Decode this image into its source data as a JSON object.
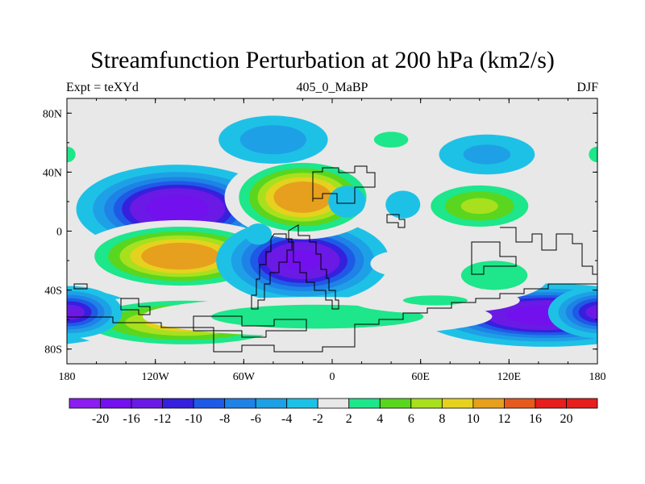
{
  "title": "Streamfunction Perturbation at 200 hPa (km2/s)",
  "left_string": "Expt = teXYd",
  "center_string": "405_0_MaBP",
  "right_string": "DJF",
  "colors": {
    "background_field": "#e8e8e8",
    "levels": [
      -20,
      -16,
      -12,
      -10,
      -8,
      -6,
      -4,
      -2,
      2,
      4,
      6,
      8,
      10,
      12,
      16,
      20
    ],
    "palette": [
      "#8a1ef0",
      "#7310ee",
      "#6a1ae4",
      "#3520de",
      "#1e5ae6",
      "#1e82e6",
      "#1ea0e6",
      "#1ec1e6",
      "#e8e8e8",
      "#1ee68a",
      "#5ad61e",
      "#a8e01e",
      "#e6d21e",
      "#e6a01e",
      "#e65a1e",
      "#e61e1e"
    ]
  },
  "axes": {
    "x_ticks": [
      "180",
      "120W",
      "60W",
      "0",
      "60E",
      "120E",
      "180"
    ],
    "y_ticks": [
      "80N",
      "40N",
      "0",
      "40S",
      "80S"
    ]
  },
  "colorbar_labels": [
    "-20",
    "-16",
    "-12",
    "-10",
    "-8",
    "-6",
    "-4",
    "-2",
    "2",
    "4",
    "6",
    "8",
    "10",
    "12",
    "16",
    "20"
  ],
  "field_blobs": [
    {
      "lon": -105,
      "lat": 15,
      "rx": 32,
      "ry": 14,
      "amp": -20
    },
    {
      "lon": -103,
      "lat": -17,
      "rx": 35,
      "ry": 12,
      "amp": 16
    },
    {
      "lon": -20,
      "lat": -20,
      "rx": 28,
      "ry": 14,
      "amp": -18
    },
    {
      "lon": -20,
      "lat": 23,
      "rx": 26,
      "ry": 14,
      "amp": 16
    },
    {
      "lon": 100,
      "lat": 17,
      "rx": 26,
      "ry": 11,
      "amp": 9
    },
    {
      "lon": 145,
      "lat": -57,
      "rx": 40,
      "ry": 10,
      "amp": -20
    },
    {
      "lon": -100,
      "lat": -62,
      "rx": 45,
      "ry": 10,
      "amp": 12
    },
    {
      "lon": -10,
      "lat": -58,
      "rx": 80,
      "ry": 9,
      "amp": 6
    },
    {
      "lon": 70,
      "lat": -47,
      "rx": 45,
      "ry": 7,
      "amp": 4.5
    },
    {
      "lon": 110,
      "lat": -30,
      "rx": 25,
      "ry": 11,
      "amp": 6
    },
    {
      "lon": -40,
      "lat": 62,
      "rx": 25,
      "ry": 11,
      "amp": -6
    },
    {
      "lon": 40,
      "lat": 62,
      "rx": 24,
      "ry": 11,
      "amp": 4.5
    },
    {
      "lon": 105,
      "lat": 52,
      "rx": 24,
      "ry": 10,
      "amp": -5
    },
    {
      "lon": 175,
      "lat": 50,
      "rx": 14,
      "ry": 10,
      "amp": 4.5
    },
    {
      "lon": -180,
      "lat": 52,
      "rx": 12,
      "ry": 11,
      "amp": 4.5
    },
    {
      "lon": -178,
      "lat": -55,
      "rx": 18,
      "ry": 9,
      "amp": -14
    },
    {
      "lon": 48,
      "lat": 18,
      "rx": 10,
      "ry": 8,
      "amp": -4
    },
    {
      "lon": 45,
      "lat": -22,
      "rx": 18,
      "ry": 8,
      "amp": 3.5
    },
    {
      "lon": 10,
      "lat": 20,
      "rx": 14,
      "ry": 12,
      "amp": -3
    },
    {
      "lon": -50,
      "lat": -2,
      "rx": 10,
      "ry": 8,
      "amp": -3
    }
  ]
}
